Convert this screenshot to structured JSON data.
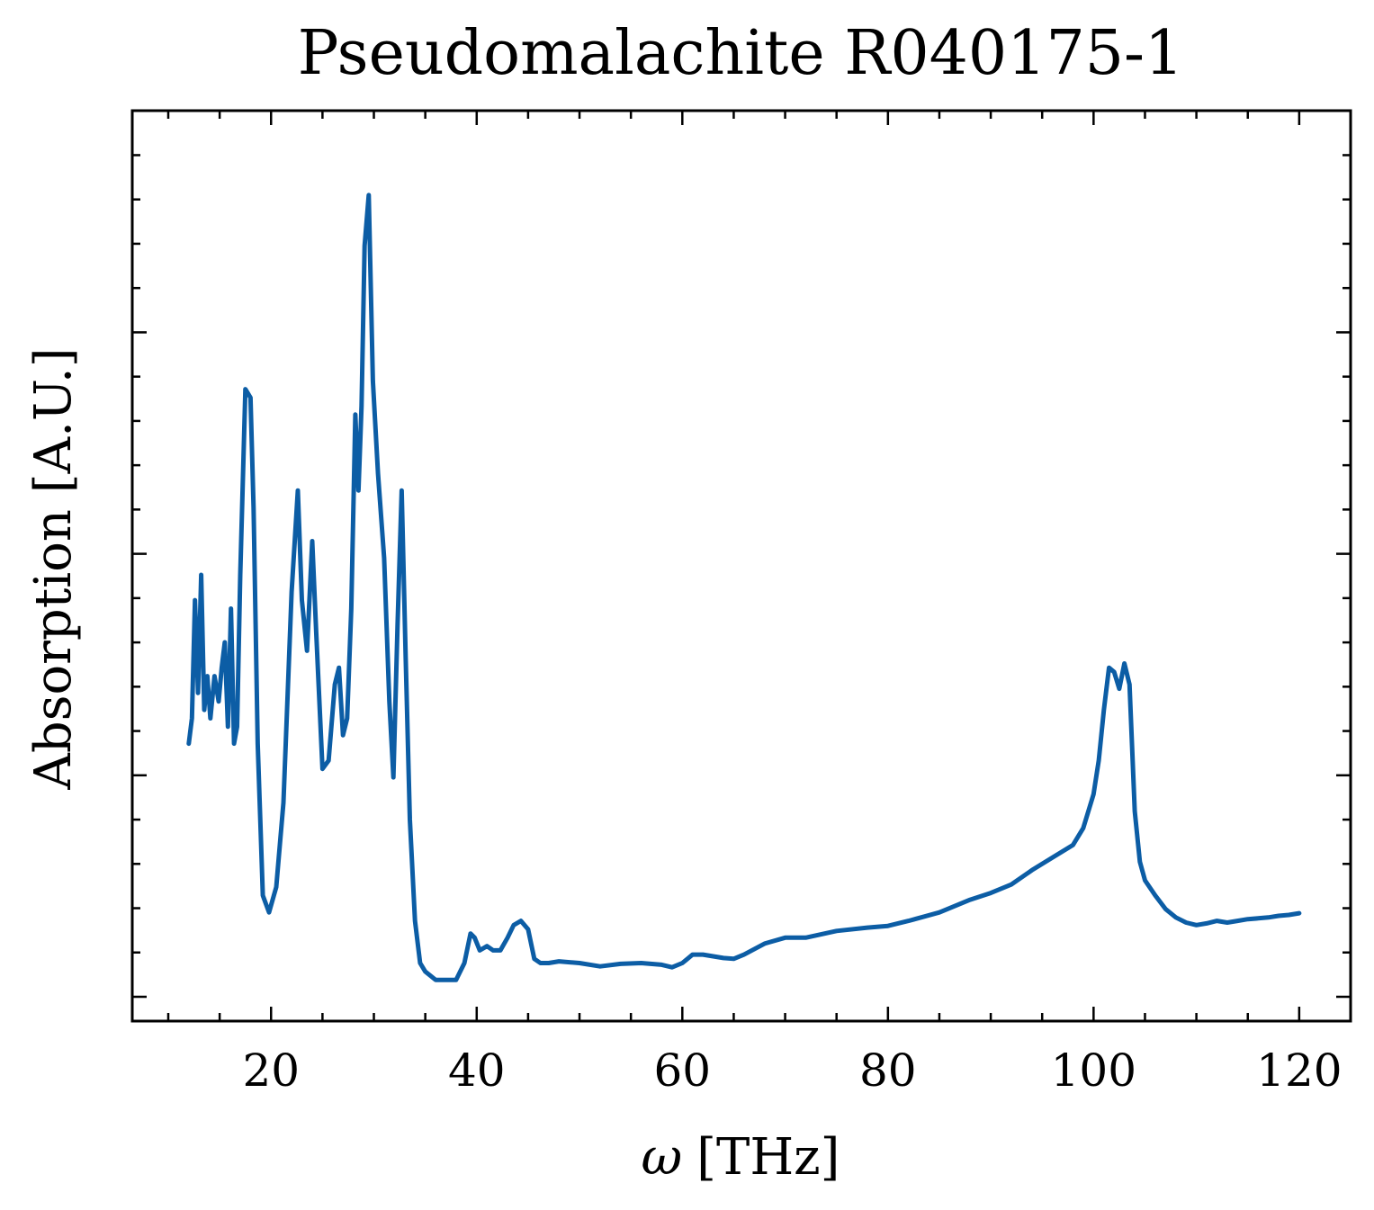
{
  "chart_data": {
    "type": "line",
    "title": "Pseudomalachite R040175-1",
    "xlabel_symbol": "ω",
    "xlabel_unit": "[THz]",
    "ylabel": "Absorption [A.U.]",
    "xlim": [
      6.5,
      125
    ],
    "ylim": [
      0,
      1
    ],
    "x_ticks": [
      20,
      40,
      60,
      80,
      100,
      120
    ],
    "x_minor_step": 5,
    "y_ticks_count": 4,
    "y_minor_per_major": 5,
    "grid": false,
    "legend": "none",
    "series": [
      {
        "color": "#0c5da5",
        "x": [
          12,
          12.3,
          12.6,
          12.9,
          13.2,
          13.5,
          13.8,
          14.1,
          14.5,
          14.9,
          15.2,
          15.5,
          15.8,
          16.1,
          16.4,
          16.7,
          17.0,
          17.5,
          18.0,
          18.3,
          18.7,
          19.2,
          19.8,
          20.5,
          21.2,
          22.0,
          22.6,
          23.0,
          23.5,
          24.0,
          24.4,
          25.0,
          25.6,
          26.2,
          26.6,
          27.0,
          27.4,
          27.8,
          28.2,
          28.5,
          28.8,
          29.1,
          29.5,
          29.9,
          30.4,
          31.0,
          31.5,
          31.9,
          32.3,
          32.7,
          33.1,
          33.5,
          34.0,
          34.5,
          35.0,
          36.0,
          37.0,
          38.0,
          38.8,
          39.4,
          39.8,
          40.3,
          41.0,
          41.6,
          42.3,
          43.0,
          43.6,
          44.3,
          45.0,
          45.6,
          46.2,
          47.0,
          48.0,
          50.0,
          52.0,
          54.0,
          56.0,
          58.0,
          59.0,
          60.0,
          61.0,
          62.0,
          64.0,
          65.0,
          66.0,
          68.0,
          70.0,
          72.0,
          75.0,
          78.0,
          80.0,
          82.0,
          85.0,
          88.0,
          90.0,
          92.0,
          94.0,
          96.0,
          98.0,
          99.0,
          100.0,
          100.5,
          101.0,
          101.5,
          102.0,
          102.5,
          103.0,
          103.5,
          104.0,
          104.5,
          105.0,
          106.0,
          107.0,
          108.0,
          109.0,
          110.0,
          111.0,
          112.0,
          113.0,
          114.0,
          115.0,
          116.0,
          117.0,
          118.0,
          119.0,
          120.0
        ],
        "y": [
          0.3,
          0.33,
          0.47,
          0.36,
          0.5,
          0.34,
          0.38,
          0.33,
          0.38,
          0.35,
          0.39,
          0.42,
          0.32,
          0.46,
          0.3,
          0.32,
          0.5,
          0.72,
          0.71,
          0.58,
          0.3,
          0.12,
          0.1,
          0.13,
          0.23,
          0.48,
          0.6,
          0.47,
          0.41,
          0.54,
          0.43,
          0.27,
          0.28,
          0.37,
          0.39,
          0.31,
          0.33,
          0.46,
          0.69,
          0.6,
          0.7,
          0.89,
          0.95,
          0.73,
          0.62,
          0.52,
          0.35,
          0.26,
          0.44,
          0.6,
          0.4,
          0.21,
          0.09,
          0.04,
          0.03,
          0.02,
          0.02,
          0.02,
          0.04,
          0.075,
          0.07,
          0.055,
          0.06,
          0.055,
          0.055,
          0.07,
          0.085,
          0.09,
          0.08,
          0.045,
          0.04,
          0.04,
          0.042,
          0.04,
          0.036,
          0.039,
          0.04,
          0.038,
          0.035,
          0.04,
          0.05,
          0.05,
          0.046,
          0.045,
          0.05,
          0.063,
          0.07,
          0.07,
          0.078,
          0.082,
          0.084,
          0.09,
          0.1,
          0.115,
          0.123,
          0.133,
          0.15,
          0.165,
          0.18,
          0.2,
          0.24,
          0.28,
          0.34,
          0.39,
          0.385,
          0.365,
          0.395,
          0.37,
          0.22,
          0.16,
          0.138,
          0.12,
          0.104,
          0.094,
          0.088,
          0.085,
          0.087,
          0.09,
          0.088,
          0.09,
          0.092,
          0.093,
          0.094,
          0.096,
          0.097,
          0.099
        ]
      }
    ]
  }
}
